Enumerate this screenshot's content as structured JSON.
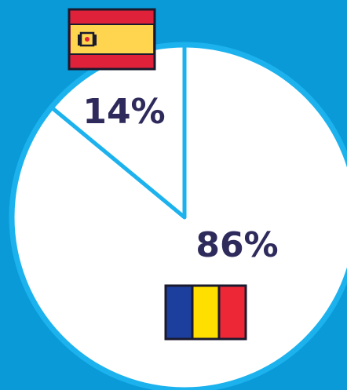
{
  "chart_data": {
    "type": "pie",
    "values": [
      14,
      86
    ],
    "value_labels": [
      "14%",
      "86%"
    ],
    "colors": [
      "#ffffff",
      "#ffffff"
    ],
    "edge_color": "#1cb2ee"
  }
}
